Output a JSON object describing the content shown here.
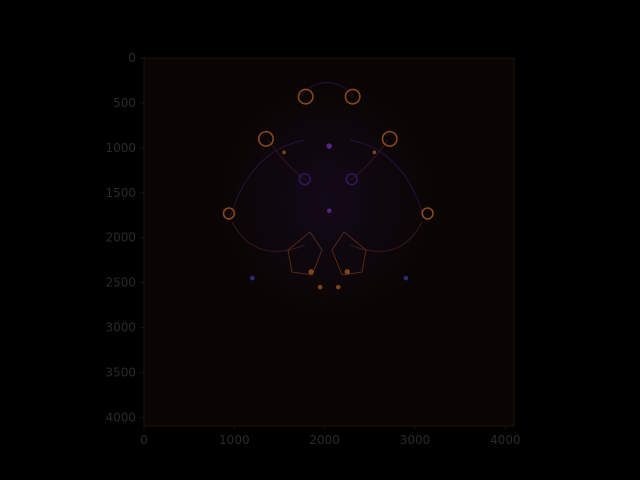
{
  "chart_data": {
    "type": "heatmap",
    "title": "",
    "xlabel": "",
    "ylabel": "",
    "xlim": [
      0,
      4096
    ],
    "ylim": [
      4096,
      0
    ],
    "x_ticks": [
      "0",
      "1000",
      "2000",
      "3000",
      "4000"
    ],
    "y_ticks": [
      "0",
      "500",
      "1000",
      "1500",
      "2000",
      "2500",
      "3000",
      "3500",
      "4000"
    ],
    "grid": false,
    "colormap": "dark inferno-like (near-black background, faint purple/orange features)",
    "colors": {
      "figure_bg": "#000000",
      "plot_bg": "#0a0503",
      "frame": "#1a120c",
      "tick_text": "#2a2a2a",
      "purple": "#3a1670",
      "violet": "#6b2aa0",
      "orange": "#a0521a",
      "blue": "#2a3a9a"
    },
    "features": [
      {
        "kind": "ring",
        "x": 1790,
        "y": 430,
        "r": 80,
        "color": "orange"
      },
      {
        "kind": "ring",
        "x": 2310,
        "y": 430,
        "r": 80,
        "color": "orange"
      },
      {
        "kind": "ring",
        "x": 1350,
        "y": 900,
        "r": 80,
        "color": "orange"
      },
      {
        "kind": "ring",
        "x": 2720,
        "y": 900,
        "r": 80,
        "color": "orange"
      },
      {
        "kind": "ring",
        "x": 940,
        "y": 1730,
        "r": 60,
        "color": "orange"
      },
      {
        "kind": "ring",
        "x": 3140,
        "y": 1730,
        "r": 60,
        "color": "orange"
      },
      {
        "kind": "ring",
        "x": 1780,
        "y": 1350,
        "r": 60,
        "color": "purple"
      },
      {
        "kind": "ring",
        "x": 2300,
        "y": 1350,
        "r": 60,
        "color": "purple"
      },
      {
        "kind": "dot",
        "x": 2050,
        "y": 980,
        "r": 30,
        "color": "violet"
      },
      {
        "kind": "dot",
        "x": 1850,
        "y": 2380,
        "r": 30,
        "color": "orange"
      },
      {
        "kind": "dot",
        "x": 2250,
        "y": 2380,
        "r": 30,
        "color": "orange"
      },
      {
        "kind": "dot",
        "x": 1950,
        "y": 2550,
        "r": 25,
        "color": "orange"
      },
      {
        "kind": "dot",
        "x": 2150,
        "y": 2550,
        "r": 25,
        "color": "orange"
      },
      {
        "kind": "dot",
        "x": 1200,
        "y": 2450,
        "r": 25,
        "color": "blue"
      },
      {
        "kind": "dot",
        "x": 2900,
        "y": 2450,
        "r": 25,
        "color": "blue"
      },
      {
        "kind": "dot",
        "x": 1550,
        "y": 1050,
        "r": 20,
        "color": "orange"
      },
      {
        "kind": "dot",
        "x": 2550,
        "y": 1050,
        "r": 20,
        "color": "orange"
      },
      {
        "kind": "dot",
        "x": 2050,
        "y": 1700,
        "r": 25,
        "color": "violet"
      }
    ]
  }
}
